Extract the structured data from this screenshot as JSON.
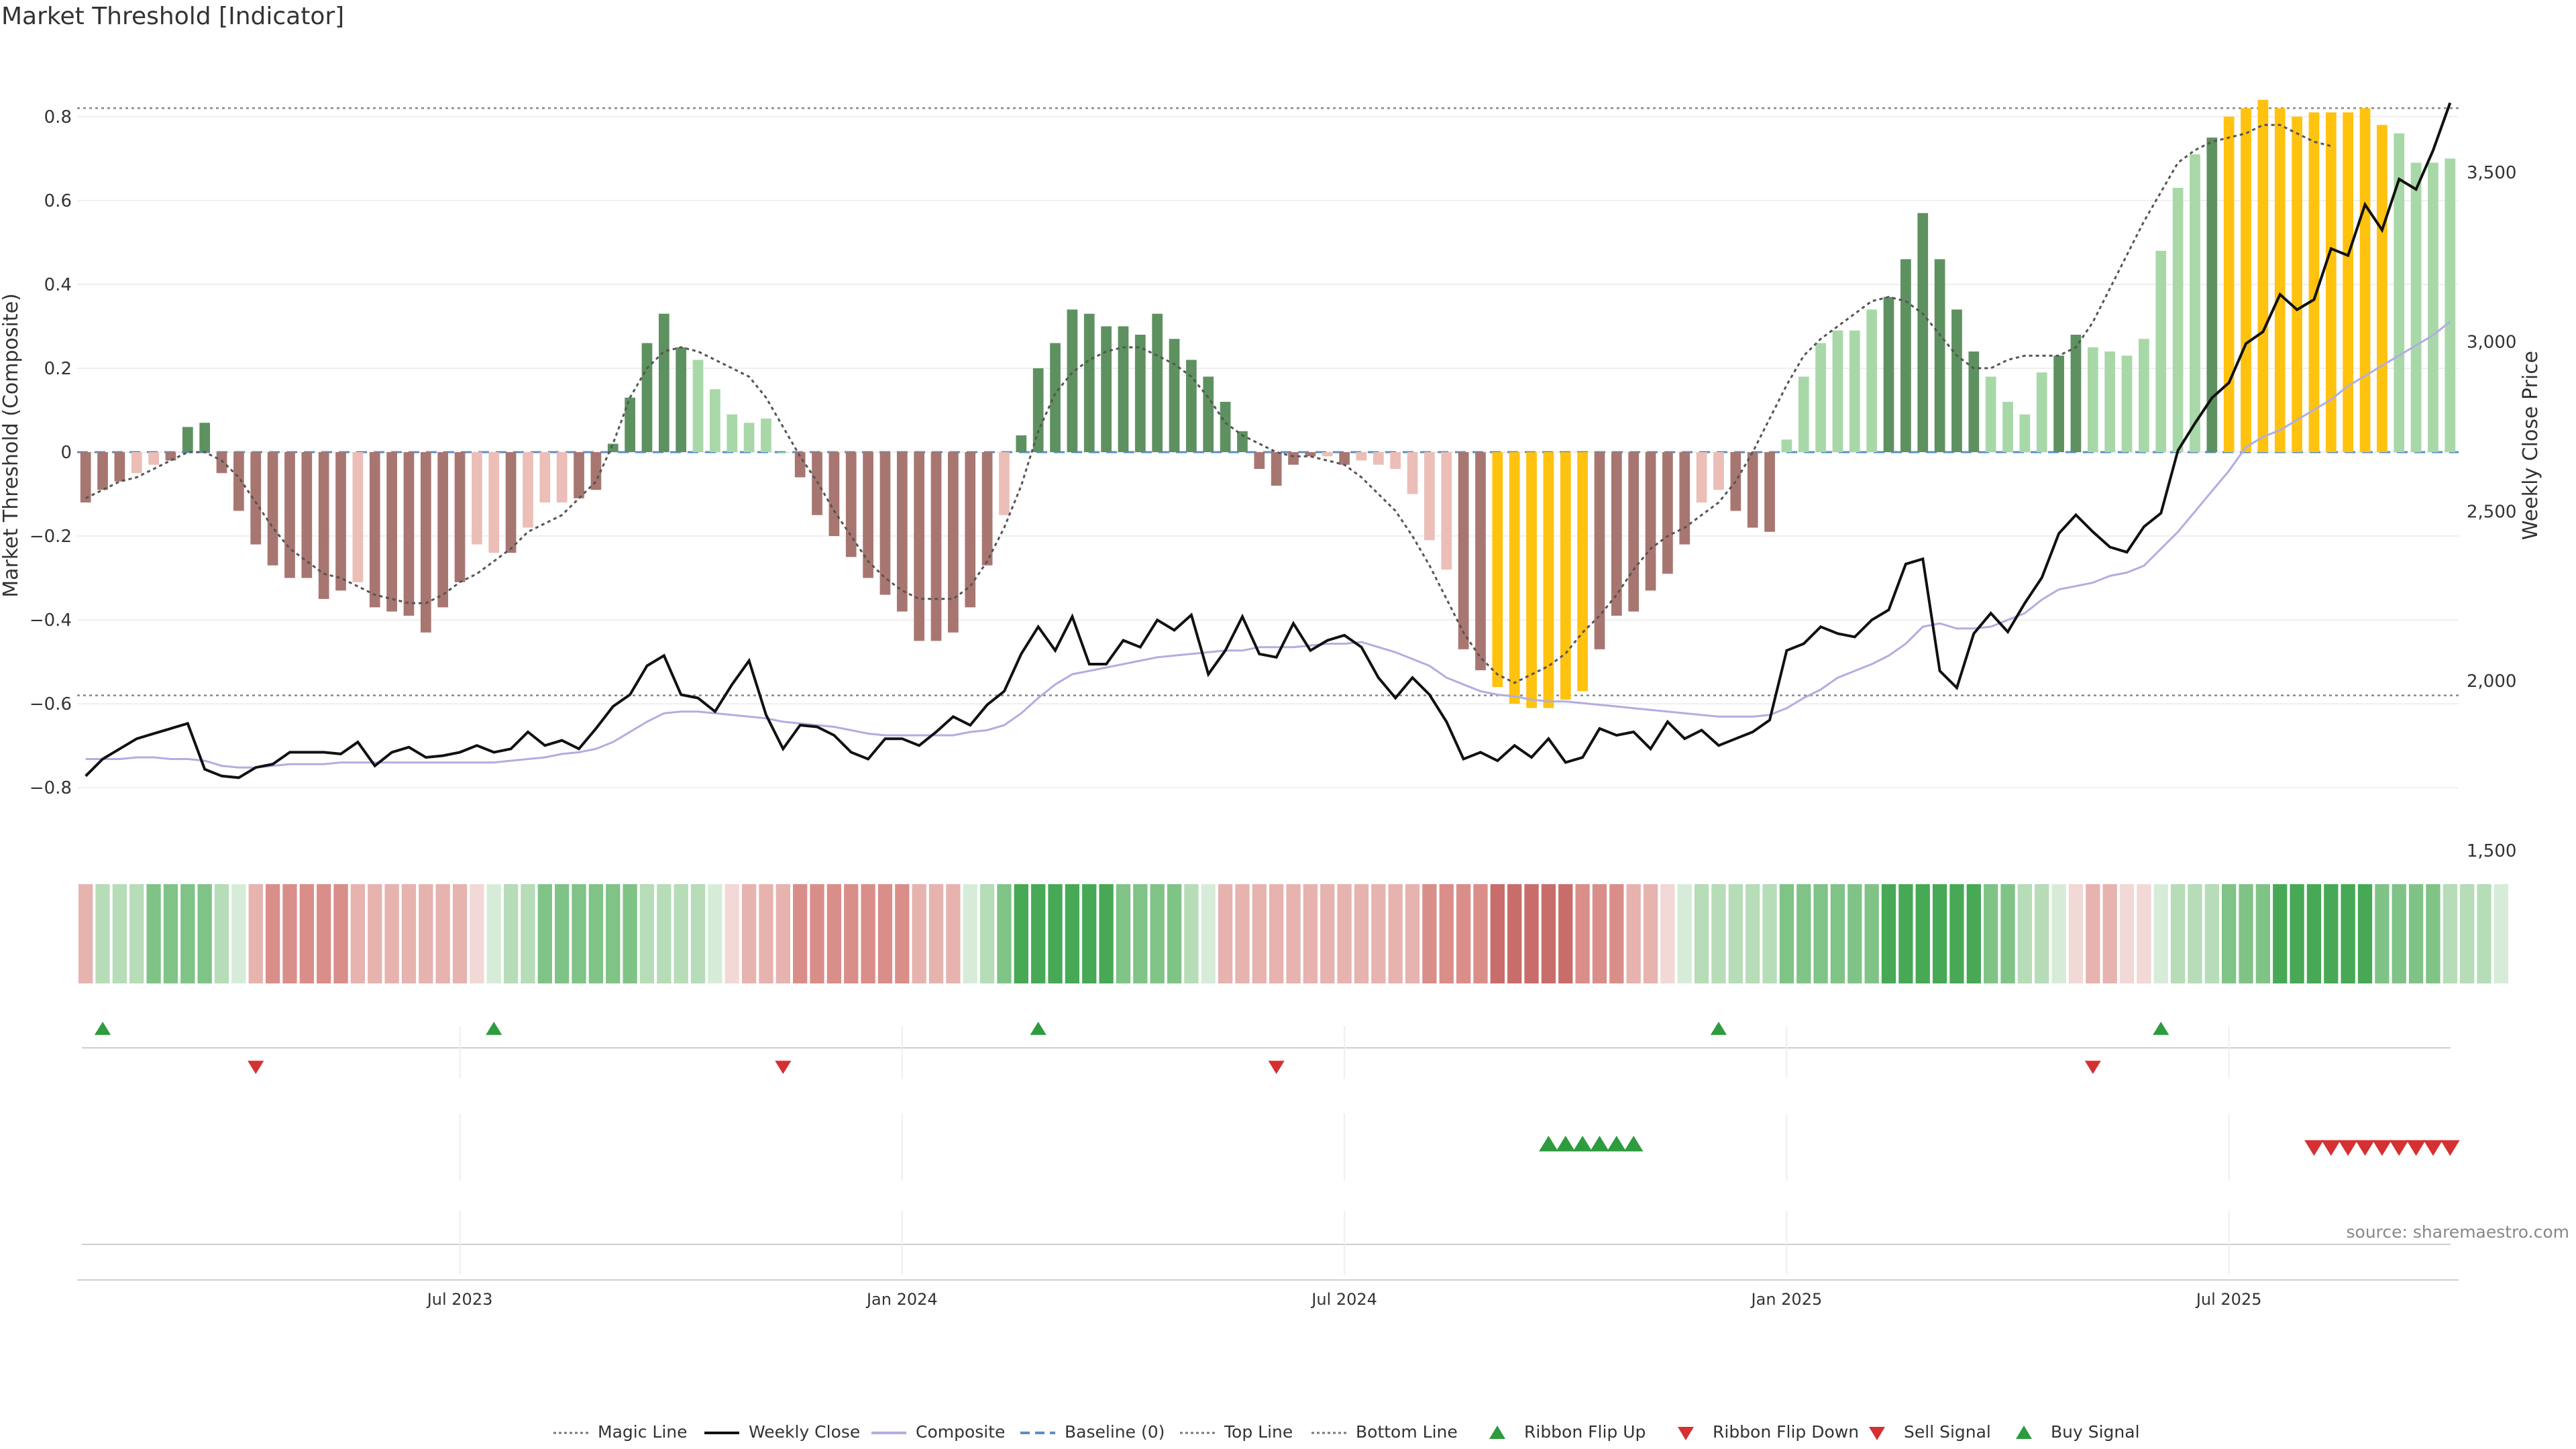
{
  "title": "Market Threshold [Indicator]",
  "source_note": "source: sharemaestro.com",
  "colors": {
    "bar_pos_strong": "#5e9160",
    "bar_pos_weak": "#a8d8a8",
    "bar_neg_strong": "#a87671",
    "bar_neg_weak": "#ecbeb8",
    "bar_extreme": "#ffc20e",
    "price_line": "#111111",
    "composite_line": "#b0aee0",
    "magic_line": "#555555",
    "baseline": "#5a8fc4",
    "ribbon_up_strong": "#3fa34d",
    "ribbon_up_weak": "#d6ecd8",
    "ribbon_down_strong": "#c86d69",
    "ribbon_down_weak": "#f2d8d6",
    "buy_marker": "#2e9b3e",
    "sell_marker": "#d53032"
  },
  "chart_data": {
    "type": "bar",
    "title": "Market Threshold [Indicator]",
    "ylabel_left": "Market Threshold (Composite)",
    "ylabel_right": "Weekly Close Price",
    "ylim_left": [
      -0.95,
      0.95
    ],
    "ylim_right": [
      1500,
      3850
    ],
    "left_ticks": [
      "0.8",
      "0.6",
      "0.4",
      "0.2",
      "0",
      "−0.2",
      "−0.4",
      "−0.6",
      "−0.8"
    ],
    "left_tick_values": [
      0.8,
      0.6,
      0.4,
      0.2,
      0,
      -0.2,
      -0.4,
      -0.6,
      -0.8
    ],
    "right_ticks": [
      "3,500",
      "3,000",
      "2,500",
      "2,000",
      "1,500"
    ],
    "right_tick_values": [
      3500,
      3000,
      2500,
      2000,
      1500
    ],
    "x_ticks": [
      "Jul 2023",
      "Jan 2024",
      "Jul 2024",
      "Jan 2025",
      "Jul 2025"
    ],
    "x_tick_weeks": [
      22,
      48,
      74,
      100,
      126
    ],
    "top_line": 0.82,
    "bottom_line": -0.58,
    "composite": [
      -0.12,
      -0.09,
      -0.07,
      -0.05,
      -0.03,
      -0.02,
      0.06,
      0.07,
      -0.05,
      -0.14,
      -0.22,
      -0.27,
      -0.3,
      -0.3,
      -0.35,
      -0.33,
      -0.31,
      -0.37,
      -0.38,
      -0.39,
      -0.43,
      -0.37,
      -0.31,
      -0.22,
      -0.24,
      -0.24,
      -0.18,
      -0.12,
      -0.12,
      -0.11,
      -0.09,
      0.02,
      0.13,
      0.26,
      0.33,
      0.25,
      0.22,
      0.15,
      0.09,
      0.07,
      0.08,
      0.0,
      -0.06,
      -0.15,
      -0.2,
      -0.25,
      -0.3,
      -0.34,
      -0.38,
      -0.45,
      -0.45,
      -0.43,
      -0.37,
      -0.27,
      -0.15,
      0.04,
      0.2,
      0.26,
      0.34,
      0.33,
      0.3,
      0.3,
      0.28,
      0.33,
      0.27,
      0.22,
      0.18,
      0.12,
      0.05,
      -0.04,
      -0.08,
      -0.03,
      -0.01,
      -0.01,
      -0.03,
      -0.02,
      -0.03,
      -0.04,
      -0.1,
      -0.21,
      -0.28,
      -0.47,
      -0.52,
      -0.56,
      -0.6,
      -0.61,
      -0.61,
      -0.59,
      -0.57,
      -0.47,
      -0.39,
      -0.38,
      -0.33,
      -0.29,
      -0.22,
      -0.12,
      -0.09,
      -0.14,
      -0.18,
      -0.19,
      0.03,
      0.18,
      0.26,
      0.29,
      0.29,
      0.34,
      0.37,
      0.46,
      0.57,
      0.46,
      0.34,
      0.24,
      0.18,
      0.12,
      0.09,
      0.19,
      0.23,
      0.28,
      0.25,
      0.24,
      0.23,
      0.27,
      0.48,
      0.63,
      0.71,
      0.75,
      0.8,
      0.82,
      0.84,
      0.82,
      0.8,
      0.81,
      0.81,
      0.81,
      0.82,
      0.78,
      0.76,
      0.69,
      0.69,
      0.7
    ],
    "magic_line": [
      -0.11,
      -0.09,
      -0.07,
      -0.06,
      -0.04,
      -0.02,
      0.0,
      0.0,
      -0.02,
      -0.06,
      -0.12,
      -0.18,
      -0.23,
      -0.26,
      -0.29,
      -0.3,
      -0.32,
      -0.34,
      -0.35,
      -0.36,
      -0.36,
      -0.34,
      -0.31,
      -0.29,
      -0.26,
      -0.23,
      -0.19,
      -0.17,
      -0.15,
      -0.11,
      -0.07,
      0.02,
      0.13,
      0.2,
      0.24,
      0.25,
      0.24,
      0.22,
      0.2,
      0.18,
      0.13,
      0.06,
      -0.01,
      -0.07,
      -0.14,
      -0.2,
      -0.26,
      -0.3,
      -0.33,
      -0.35,
      -0.35,
      -0.35,
      -0.32,
      -0.26,
      -0.18,
      -0.08,
      0.05,
      0.14,
      0.19,
      0.22,
      0.24,
      0.25,
      0.25,
      0.23,
      0.21,
      0.18,
      0.13,
      0.07,
      0.04,
      0.02,
      0.0,
      -0.01,
      -0.01,
      -0.02,
      -0.03,
      -0.06,
      -0.1,
      -0.14,
      -0.2,
      -0.27,
      -0.35,
      -0.43,
      -0.49,
      -0.53,
      -0.55,
      -0.53,
      -0.51,
      -0.48,
      -0.43,
      -0.39,
      -0.34,
      -0.28,
      -0.23,
      -0.2,
      -0.18,
      -0.15,
      -0.12,
      -0.07,
      0.0,
      0.08,
      0.16,
      0.23,
      0.27,
      0.3,
      0.33,
      0.36,
      0.37,
      0.36,
      0.33,
      0.28,
      0.23,
      0.2,
      0.2,
      0.22,
      0.23,
      0.23,
      0.23,
      0.25,
      0.31,
      0.39,
      0.47,
      0.55,
      0.62,
      0.69,
      0.72,
      0.74,
      0.75,
      0.76,
      0.78,
      0.78,
      0.76,
      0.74,
      0.73
    ],
    "weekly_close": [
      1720,
      1770,
      1800,
      1830,
      1845,
      1860,
      1875,
      1740,
      1720,
      1715,
      1745,
      1755,
      1790,
      1790,
      1790,
      1785,
      1820,
      1750,
      1790,
      1805,
      1775,
      1780,
      1790,
      1810,
      1790,
      1800,
      1850,
      1810,
      1825,
      1800,
      1860,
      1925,
      1960,
      2045,
      2075,
      1960,
      1950,
      1910,
      1990,
      2060,
      1900,
      1800,
      1870,
      1865,
      1840,
      1790,
      1770,
      1830,
      1830,
      1810,
      1850,
      1895,
      1870,
      1930,
      1970,
      2080,
      2160,
      2090,
      2190,
      2050,
      2050,
      2120,
      2100,
      2180,
      2150,
      2195,
      2020,
      2090,
      2190,
      2080,
      2070,
      2170,
      2090,
      2120,
      2135,
      2100,
      2010,
      1950,
      2010,
      1960,
      1880,
      1770,
      1790,
      1765,
      1810,
      1775,
      1830,
      1760,
      1775,
      1860,
      1840,
      1850,
      1800,
      1880,
      1830,
      1855,
      1810,
      1830,
      1850,
      1885,
      2090,
      2110,
      2160,
      2140,
      2130,
      2180,
      2210,
      2345,
      2360,
      2030,
      1980,
      2140,
      2200,
      2145,
      2230,
      2305,
      2435,
      2490,
      2440,
      2395,
      2380,
      2455,
      2495,
      2680,
      2760,
      2835,
      2880,
      2995,
      3030,
      3140,
      3095,
      3125,
      3275,
      3255,
      3405,
      3330,
      3480,
      3450,
      3565,
      3705
    ],
    "composite_line": [
      1770,
      1770,
      1770,
      1775,
      1775,
      1770,
      1770,
      1765,
      1750,
      1745,
      1745,
      1750,
      1755,
      1755,
      1755,
      1760,
      1760,
      1760,
      1760,
      1760,
      1760,
      1760,
      1760,
      1760,
      1760,
      1765,
      1770,
      1775,
      1785,
      1790,
      1800,
      1820,
      1850,
      1880,
      1905,
      1910,
      1910,
      1905,
      1900,
      1895,
      1890,
      1880,
      1875,
      1870,
      1865,
      1855,
      1845,
      1840,
      1840,
      1840,
      1840,
      1840,
      1850,
      1855,
      1870,
      1905,
      1950,
      1990,
      2020,
      2030,
      2040,
      2050,
      2060,
      2070,
      2075,
      2080,
      2085,
      2090,
      2090,
      2100,
      2100,
      2100,
      2105,
      2110,
      2110,
      2115,
      2100,
      2085,
      2065,
      2045,
      2010,
      1990,
      1970,
      1960,
      1955,
      1945,
      1940,
      1940,
      1935,
      1930,
      1925,
      1920,
      1915,
      1910,
      1905,
      1900,
      1895,
      1895,
      1895,
      1900,
      1920,
      1950,
      1975,
      2010,
      2030,
      2050,
      2075,
      2110,
      2160,
      2170,
      2155,
      2155,
      2160,
      2180,
      2200,
      2240,
      2270,
      2280,
      2290,
      2310,
      2320,
      2340,
      2390,
      2440,
      2500,
      2560,
      2620,
      2690,
      2720,
      2740,
      2770,
      2800,
      2830,
      2870,
      2900,
      2930,
      2960,
      2990,
      3020,
      3060
    ],
    "ribbon": [
      -1,
      1,
      1,
      1,
      2,
      2,
      2,
      2,
      1,
      0,
      -1,
      -2,
      -2,
      -2,
      -2,
      -2,
      -1,
      -1,
      -1,
      -1,
      -1,
      -1,
      -1,
      0,
      0,
      1,
      1,
      2,
      2,
      2,
      2,
      2,
      2,
      1,
      1,
      1,
      1,
      0,
      0,
      -1,
      -1,
      -1,
      -2,
      -2,
      -2,
      -2,
      -2,
      -2,
      -2,
      -1,
      -1,
      -1,
      0,
      1,
      2,
      3,
      3,
      3,
      3,
      3,
      3,
      2,
      2,
      2,
      2,
      1,
      0,
      -1,
      -1,
      -1,
      -1,
      -1,
      -1,
      -1,
      -1,
      -1,
      -1,
      -1,
      -1,
      -2,
      -2,
      -2,
      -2,
      -3,
      -3,
      -3,
      -3,
      -3,
      -2,
      -2,
      -2,
      -1,
      -1,
      0,
      0,
      1,
      1,
      1,
      1,
      1,
      2,
      2,
      2,
      2,
      2,
      2,
      3,
      3,
      3,
      3,
      3,
      3,
      2,
      2,
      1,
      1,
      0,
      0,
      -1,
      -1,
      0,
      0,
      0,
      1,
      1,
      1,
      2,
      2,
      2,
      3,
      3,
      3,
      3,
      3,
      3,
      2,
      2,
      2,
      2,
      1,
      1,
      1,
      0
    ],
    "ribbon_flip_up_weeks": [
      1,
      24,
      56,
      96,
      122
    ],
    "ribbon_flip_down_weeks": [
      10,
      41,
      70,
      118
    ],
    "buy_signal_weeks": [
      86,
      87,
      88,
      89,
      90,
      91
    ],
    "sell_signal_weeks": [
      131,
      132,
      133,
      134,
      135,
      136,
      137,
      138,
      139
    ]
  },
  "legend": [
    {
      "label": "Magic Line",
      "icon": "dotted-line-icon"
    },
    {
      "label": "Weekly Close",
      "icon": "solid-line-icon"
    },
    {
      "label": "Composite",
      "icon": "lavender-line-icon"
    },
    {
      "label": "Baseline (0)",
      "icon": "dashed-line-icon"
    },
    {
      "label": "Top Line",
      "icon": "dotted-line-icon"
    },
    {
      "label": "Bottom Line",
      "icon": "dotted-line-icon"
    },
    {
      "label": "Ribbon Flip Up",
      "icon": "green-triangle-up-icon"
    },
    {
      "label": "Ribbon Flip Down",
      "icon": "red-triangle-down-icon"
    },
    {
      "label": "Sell Signal",
      "icon": "red-triangle-down-icon"
    },
    {
      "label": "Buy Signal",
      "icon": "green-triangle-up-icon"
    }
  ]
}
